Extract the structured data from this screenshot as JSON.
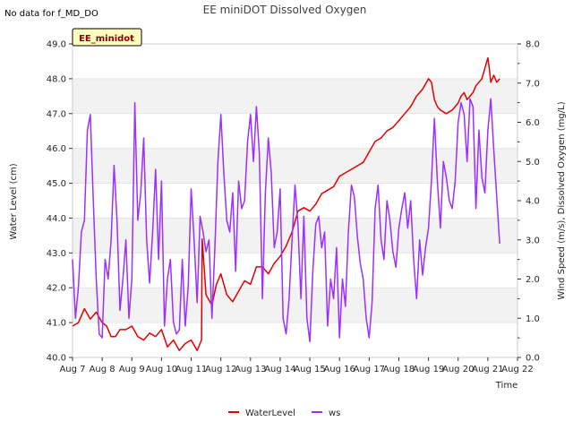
{
  "chart_data": {
    "type": "line",
    "title": "EE miniDOT Dissolved Oxygen",
    "note": "No data for f_MD_DO",
    "badge": "EE_minidot",
    "xlabel": "Time",
    "ylabel_left": "Water Level (cm)",
    "ylabel_right": "Wind Speed (m/s), Dissolved Oxygen (mg/L)",
    "xlim": [
      7,
      22
    ],
    "ylim_left": [
      40.0,
      49.0
    ],
    "ylim_right": [
      0.0,
      8.0
    ],
    "x_ticks": [
      7,
      8,
      9,
      10,
      11,
      12,
      13,
      14,
      15,
      16,
      17,
      18,
      19,
      20,
      21,
      22
    ],
    "x_tick_labels": [
      "Aug 7",
      "Aug 8",
      "Aug 9",
      "Aug 10",
      "Aug 11",
      "Aug 12",
      "Aug 13",
      "Aug 14",
      "Aug 15",
      "Aug 16",
      "Aug 17",
      "Aug 18",
      "Aug 19",
      "Aug 20",
      "Aug 21",
      "Aug 22"
    ],
    "y_ticks_left": [
      40.0,
      41.0,
      42.0,
      43.0,
      44.0,
      45.0,
      46.0,
      47.0,
      48.0,
      49.0
    ],
    "y_tick_labels_left": [
      "40.0",
      "41.0",
      "42.0",
      "43.0",
      "44.0",
      "45.0",
      "46.0",
      "47.0",
      "48.0",
      "49.0"
    ],
    "y_ticks_right": [
      0.0,
      1.0,
      2.0,
      3.0,
      4.0,
      5.0,
      6.0,
      7.0,
      8.0
    ],
    "y_tick_labels_right": [
      "0.0",
      "1.0",
      "2.0",
      "3.0",
      "4.0",
      "5.0",
      "6.0",
      "7.0",
      "8.0"
    ],
    "background_bands": true,
    "grid": "horizontal",
    "legend_position": "bottom-center",
    "series": [
      {
        "name": "WaterLevel",
        "axis": "left",
        "color": "#e60000",
        "x": [
          7.0,
          7.2,
          7.4,
          7.6,
          7.8,
          8.0,
          8.15,
          8.3,
          8.45,
          8.6,
          8.8,
          9.0,
          9.2,
          9.4,
          9.6,
          9.8,
          10.0,
          10.2,
          10.4,
          10.6,
          10.8,
          11.0,
          11.2,
          11.35,
          11.37,
          11.5,
          11.7,
          11.85,
          12.0,
          12.2,
          12.4,
          12.6,
          12.8,
          13.0,
          13.2,
          13.4,
          13.6,
          13.8,
          14.0,
          14.2,
          14.4,
          14.6,
          14.8,
          15.0,
          15.2,
          15.4,
          15.6,
          15.8,
          16.0,
          16.2,
          16.4,
          16.6,
          16.8,
          17.0,
          17.2,
          17.4,
          17.6,
          17.8,
          18.0,
          18.2,
          18.4,
          18.6,
          18.8,
          19.0,
          19.1,
          19.2,
          19.3,
          19.4,
          19.6,
          19.8,
          20.0,
          20.1,
          20.2,
          20.3,
          20.4,
          20.5,
          20.6,
          20.7,
          20.8,
          20.9,
          21.0,
          21.05,
          21.1,
          21.2,
          21.3,
          21.4
        ],
        "values": [
          40.9,
          41.0,
          41.4,
          41.1,
          41.3,
          41.0,
          40.9,
          40.6,
          40.6,
          40.8,
          40.8,
          40.9,
          40.6,
          40.5,
          40.7,
          40.6,
          40.8,
          40.3,
          40.5,
          40.2,
          40.4,
          40.5,
          40.2,
          40.5,
          43.4,
          41.8,
          41.5,
          42.1,
          42.4,
          41.8,
          41.6,
          41.9,
          42.2,
          42.1,
          42.6,
          42.6,
          42.4,
          42.7,
          42.9,
          43.2,
          43.6,
          44.2,
          44.3,
          44.2,
          44.4,
          44.7,
          44.8,
          44.9,
          45.2,
          45.3,
          45.4,
          45.5,
          45.6,
          45.9,
          46.2,
          46.3,
          46.5,
          46.6,
          46.8,
          47.0,
          47.2,
          47.5,
          47.7,
          48.0,
          47.9,
          47.4,
          47.2,
          47.1,
          47.0,
          47.1,
          47.3,
          47.5,
          47.6,
          47.4,
          47.5,
          47.6,
          47.8,
          47.9,
          48.0,
          48.3,
          48.6,
          48.3,
          47.9,
          48.1,
          47.9,
          48.0
        ]
      },
      {
        "name": "ws",
        "axis": "right",
        "color": "#9b30ff",
        "x": [
          7.0,
          7.1,
          7.2,
          7.3,
          7.4,
          7.5,
          7.6,
          7.7,
          7.8,
          7.9,
          8.0,
          8.1,
          8.2,
          8.3,
          8.4,
          8.5,
          8.6,
          8.7,
          8.8,
          8.9,
          9.0,
          9.1,
          9.2,
          9.3,
          9.4,
          9.5,
          9.6,
          9.7,
          9.8,
          9.9,
          10.0,
          10.1,
          10.2,
          10.3,
          10.4,
          10.5,
          10.6,
          10.7,
          10.8,
          10.9,
          11.0,
          11.1,
          11.2,
          11.3,
          11.4,
          11.5,
          11.6,
          11.7,
          11.8,
          11.9,
          12.0,
          12.1,
          12.2,
          12.3,
          12.4,
          12.5,
          12.6,
          12.7,
          12.8,
          12.9,
          13.0,
          13.1,
          13.2,
          13.3,
          13.4,
          13.5,
          13.6,
          13.7,
          13.8,
          13.9,
          14.0,
          14.1,
          14.2,
          14.3,
          14.4,
          14.5,
          14.6,
          14.7,
          14.8,
          14.9,
          15.0,
          15.1,
          15.2,
          15.3,
          15.4,
          15.5,
          15.6,
          15.7,
          15.8,
          15.9,
          16.0,
          16.1,
          16.2,
          16.3,
          16.4,
          16.5,
          16.6,
          16.7,
          16.8,
          16.9,
          17.0,
          17.1,
          17.2,
          17.3,
          17.4,
          17.5,
          17.6,
          17.7,
          17.8,
          17.9,
          18.0,
          18.1,
          18.2,
          18.3,
          18.4,
          18.5,
          18.6,
          18.7,
          18.8,
          18.9,
          19.0,
          19.1,
          19.2,
          19.3,
          19.4,
          19.5,
          19.6,
          19.7,
          19.8,
          19.9,
          20.0,
          20.1,
          20.2,
          20.3,
          20.4,
          20.5,
          20.6,
          20.7,
          20.8,
          20.9,
          21.0,
          21.1,
          21.2,
          21.3,
          21.4
        ],
        "values": [
          2.5,
          1.0,
          1.8,
          3.2,
          3.5,
          5.8,
          6.2,
          4.0,
          2.0,
          0.6,
          0.5,
          2.5,
          2.0,
          3.0,
          4.9,
          3.5,
          1.2,
          2.0,
          3.0,
          1.0,
          2.0,
          6.5,
          3.5,
          4.2,
          5.6,
          3.0,
          1.9,
          3.2,
          4.8,
          2.5,
          4.5,
          0.8,
          2.0,
          2.5,
          0.9,
          0.6,
          0.7,
          2.5,
          0.8,
          1.8,
          4.3,
          3.0,
          1.4,
          3.6,
          3.2,
          2.7,
          3.0,
          1.0,
          2.8,
          5.0,
          6.2,
          4.7,
          3.5,
          3.2,
          4.2,
          2.2,
          4.5,
          3.8,
          4.0,
          5.5,
          6.2,
          5.0,
          6.4,
          5.2,
          1.5,
          4.2,
          5.6,
          4.7,
          2.8,
          3.2,
          4.3,
          1.0,
          0.6,
          1.5,
          3.0,
          4.4,
          3.4,
          1.5,
          3.6,
          1.0,
          0.4,
          2.2,
          3.4,
          3.6,
          2.8,
          3.2,
          0.8,
          2.0,
          1.5,
          2.8,
          0.5,
          2.0,
          1.3,
          3.2,
          4.4,
          4.1,
          3.1,
          2.4,
          2.0,
          1.0,
          0.5,
          1.4,
          3.8,
          4.4,
          3.0,
          2.5,
          4.0,
          3.5,
          2.7,
          2.3,
          3.3,
          3.8,
          4.2,
          3.3,
          4.0,
          2.5,
          1.5,
          3.0,
          2.1,
          2.8,
          3.3,
          4.5,
          6.1,
          4.5,
          3.3,
          5.0,
          4.6,
          4.0,
          3.8,
          4.5,
          6.0,
          6.5,
          6.2,
          5.0,
          6.6,
          6.4,
          3.8,
          5.8,
          4.6,
          4.2,
          5.8,
          6.6,
          5.3,
          4.1,
          2.9
        ]
      }
    ]
  }
}
